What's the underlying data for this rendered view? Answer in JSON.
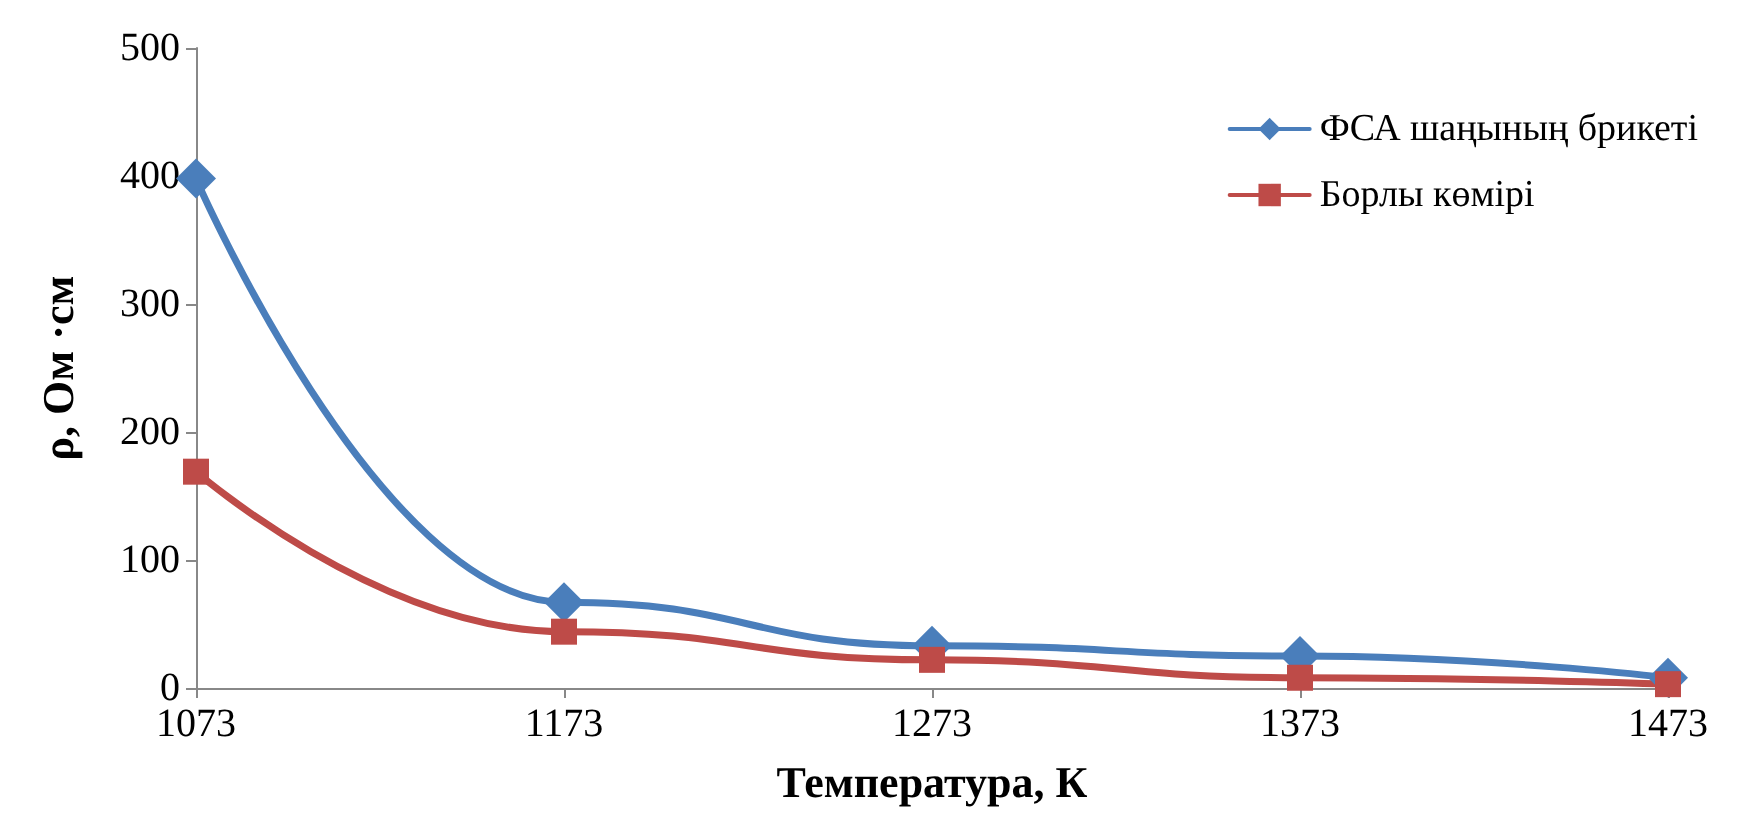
{
  "chart_data": {
    "type": "line",
    "xlabel": "Температура, К",
    "ylabel": "ρ, Ом ·см",
    "x": [
      1073,
      1173,
      1273,
      1373,
      1473
    ],
    "series": [
      {
        "name": "ФСА шаңының брикеті",
        "color": "#4a7ebb",
        "marker": "diamond",
        "values": [
          398,
          67,
          33,
          25,
          8
        ]
      },
      {
        "name": "Борлы көмірі",
        "color": "#be4b48",
        "marker": "square",
        "values": [
          169,
          44,
          22,
          8,
          3
        ]
      }
    ],
    "xlim": [
      1073,
      1473
    ],
    "xticks": [
      1073,
      1173,
      1273,
      1373,
      1473
    ],
    "ylim": [
      0,
      500
    ],
    "yticks": [
      0,
      100,
      200,
      300,
      400,
      500
    ],
    "grid": false,
    "legend": "top right",
    "line_style": "solid"
  }
}
